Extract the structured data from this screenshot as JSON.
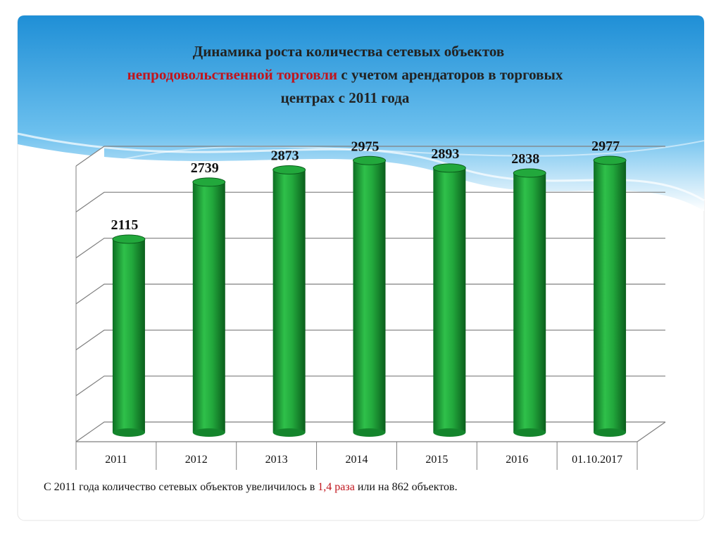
{
  "chart_data": {
    "type": "bar",
    "title_parts": [
      "Динамика роста количества сетевых объектов",
      "непродовольственной  торговли",
      "с учетом арендаторов в торговых",
      "центрах с 2011 года"
    ],
    "categories": [
      "2011",
      "2012",
      "2013",
      "2014",
      "2015",
      "2016",
      "01.10.2017"
    ],
    "values": [
      2115,
      2739,
      2873,
      2975,
      2893,
      2838,
      2977
    ],
    "color": "#1fa33a",
    "ylim": [
      0,
      3000
    ],
    "yticks": [
      0,
      500,
      1000,
      1500,
      2000,
      2500,
      3000
    ],
    "grid": true,
    "note_parts": [
      "С 2011 года количество сетевых объектов увеличилось в",
      "1,4 раза",
      "или на 862 объектов."
    ]
  }
}
